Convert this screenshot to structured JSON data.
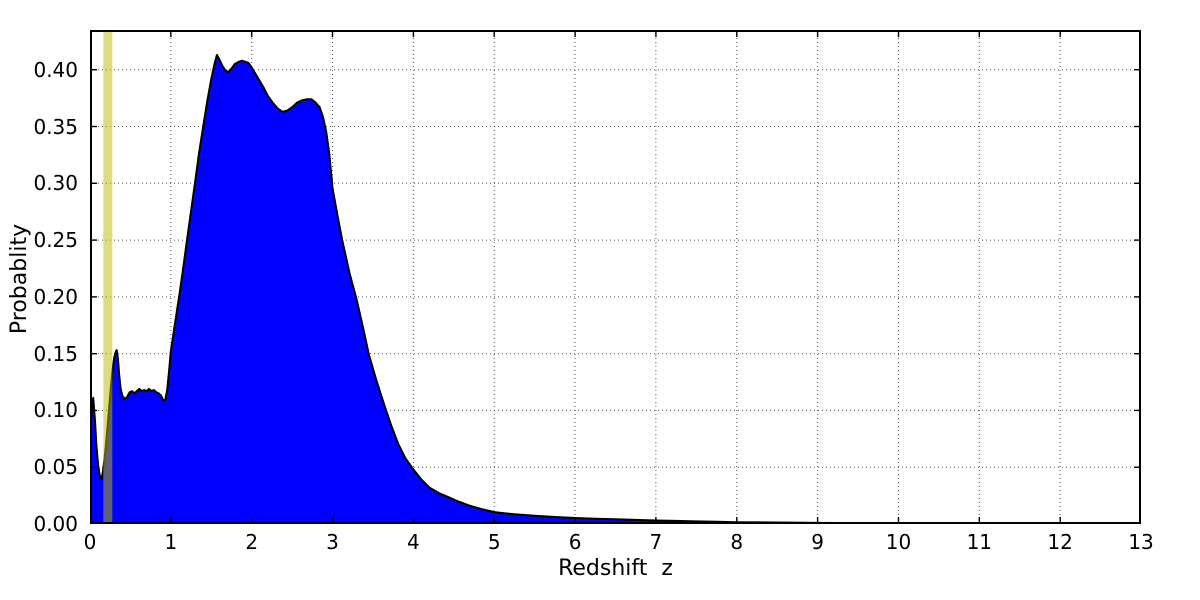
{
  "chart_data": {
    "type": "area",
    "title": "",
    "xlabel": "Redshift  z",
    "ylabel": "Probablity",
    "xlim": [
      0,
      13
    ],
    "ylim": [
      0,
      0.435
    ],
    "grid": true,
    "grid_style": "dotted",
    "legend": "none",
    "x_tick_values": [
      0,
      1,
      2,
      3,
      4,
      5,
      6,
      7,
      8,
      9,
      10,
      11,
      12,
      13
    ],
    "x_tick_labels": [
      "0",
      "1",
      "2",
      "3",
      "4",
      "5",
      "6",
      "7",
      "8",
      "9",
      "10",
      "11",
      "12",
      "13"
    ],
    "y_tick_values": [
      0.0,
      0.05,
      0.1,
      0.15,
      0.2,
      0.25,
      0.3,
      0.35,
      0.4
    ],
    "y_tick_labels": [
      "0.00",
      "0.05",
      "0.10",
      "0.15",
      "0.20",
      "0.25",
      "0.30",
      "0.35",
      "0.40"
    ],
    "series": [
      {
        "name": "redshift-probability-density",
        "fill_color": "#0000ff",
        "edge_color": "#000000",
        "points": [
          [
            0.0,
            0.075
          ],
          [
            0.02,
            0.098
          ],
          [
            0.04,
            0.111
          ],
          [
            0.06,
            0.092
          ],
          [
            0.08,
            0.068
          ],
          [
            0.1,
            0.052
          ],
          [
            0.12,
            0.043
          ],
          [
            0.14,
            0.039
          ],
          [
            0.16,
            0.046
          ],
          [
            0.18,
            0.058
          ],
          [
            0.2,
            0.072
          ],
          [
            0.22,
            0.088
          ],
          [
            0.24,
            0.105
          ],
          [
            0.26,
            0.122
          ],
          [
            0.28,
            0.136
          ],
          [
            0.3,
            0.147
          ],
          [
            0.32,
            0.152
          ],
          [
            0.33,
            0.153
          ],
          [
            0.345,
            0.146
          ],
          [
            0.36,
            0.132
          ],
          [
            0.38,
            0.119
          ],
          [
            0.4,
            0.113
          ],
          [
            0.43,
            0.11
          ],
          [
            0.46,
            0.112
          ],
          [
            0.49,
            0.116
          ],
          [
            0.52,
            0.117
          ],
          [
            0.55,
            0.115
          ],
          [
            0.58,
            0.117
          ],
          [
            0.61,
            0.119
          ],
          [
            0.64,
            0.117
          ],
          [
            0.67,
            0.118
          ],
          [
            0.7,
            0.117
          ],
          [
            0.73,
            0.119
          ],
          [
            0.76,
            0.117
          ],
          [
            0.79,
            0.118
          ],
          [
            0.82,
            0.116
          ],
          [
            0.85,
            0.115
          ],
          [
            0.88,
            0.113
          ],
          [
            0.905,
            0.109
          ],
          [
            0.93,
            0.109
          ],
          [
            0.955,
            0.118
          ],
          [
            0.98,
            0.136
          ],
          [
            1.0,
            0.152
          ],
          [
            1.05,
            0.176
          ],
          [
            1.1,
            0.199
          ],
          [
            1.15,
            0.224
          ],
          [
            1.2,
            0.25
          ],
          [
            1.25,
            0.276
          ],
          [
            1.3,
            0.301
          ],
          [
            1.35,
            0.327
          ],
          [
            1.4,
            0.35
          ],
          [
            1.45,
            0.372
          ],
          [
            1.5,
            0.392
          ],
          [
            1.54,
            0.405
          ],
          [
            1.57,
            0.413
          ],
          [
            1.6,
            0.409
          ],
          [
            1.64,
            0.403
          ],
          [
            1.68,
            0.399
          ],
          [
            1.71,
            0.398
          ],
          [
            1.75,
            0.401
          ],
          [
            1.79,
            0.405
          ],
          [
            1.84,
            0.407
          ],
          [
            1.88,
            0.408
          ],
          [
            1.92,
            0.407
          ],
          [
            1.96,
            0.406
          ],
          [
            2.0,
            0.402
          ],
          [
            2.05,
            0.396
          ],
          [
            2.1,
            0.39
          ],
          [
            2.15,
            0.384
          ],
          [
            2.2,
            0.377
          ],
          [
            2.26,
            0.371
          ],
          [
            2.32,
            0.366
          ],
          [
            2.38,
            0.363
          ],
          [
            2.44,
            0.364
          ],
          [
            2.5,
            0.367
          ],
          [
            2.56,
            0.371
          ],
          [
            2.62,
            0.373
          ],
          [
            2.68,
            0.374
          ],
          [
            2.74,
            0.374
          ],
          [
            2.79,
            0.371
          ],
          [
            2.84,
            0.367
          ],
          [
            2.88,
            0.359
          ],
          [
            2.92,
            0.346
          ],
          [
            2.96,
            0.326
          ],
          [
            3.0,
            0.296
          ],
          [
            3.06,
            0.272
          ],
          [
            3.12,
            0.25
          ],
          [
            3.21,
            0.221
          ],
          [
            3.3,
            0.197
          ],
          [
            3.38,
            0.172
          ],
          [
            3.45,
            0.149
          ],
          [
            3.54,
            0.127
          ],
          [
            3.63,
            0.107
          ],
          [
            3.72,
            0.088
          ],
          [
            3.81,
            0.071
          ],
          [
            3.9,
            0.058
          ],
          [
            4.0,
            0.048
          ],
          [
            4.1,
            0.039
          ],
          [
            4.2,
            0.032
          ],
          [
            4.32,
            0.027
          ],
          [
            4.42,
            0.024
          ],
          [
            4.55,
            0.02
          ],
          [
            4.7,
            0.016
          ],
          [
            4.85,
            0.013
          ],
          [
            5.0,
            0.0105
          ],
          [
            5.25,
            0.0085
          ],
          [
            5.5,
            0.0072
          ],
          [
            5.75,
            0.0062
          ],
          [
            6.0,
            0.0053
          ],
          [
            6.25,
            0.0047
          ],
          [
            6.5,
            0.0041
          ],
          [
            6.75,
            0.0036
          ],
          [
            7.0,
            0.0031
          ],
          [
            7.25,
            0.0027
          ],
          [
            7.5,
            0.0023
          ],
          [
            7.75,
            0.0019
          ],
          [
            8.0,
            0.0016
          ],
          [
            8.5,
            0.0013
          ],
          [
            9.0,
            0.001
          ],
          [
            9.5,
            0.0008
          ],
          [
            10.0,
            0.0007
          ],
          [
            10.5,
            0.0005
          ],
          [
            11.0,
            0.0004
          ],
          [
            11.5,
            0.0003
          ],
          [
            12.0,
            0.0002
          ],
          [
            12.5,
            0.0001
          ],
          [
            13.0,
            0.0001
          ]
        ]
      }
    ],
    "annotations": [
      {
        "name": "redshift-highlight-band",
        "type": "vspan",
        "x_min": 0.165,
        "x_max": 0.276,
        "color": "#bbbb00",
        "alpha": 0.5
      }
    ]
  },
  "colors": {
    "background": "#ffffff",
    "area_fill": "#0000ff",
    "area_edge": "#000000",
    "band": "#bbbb00",
    "grid": "#555555",
    "text": "#000000",
    "spine": "#000000"
  }
}
